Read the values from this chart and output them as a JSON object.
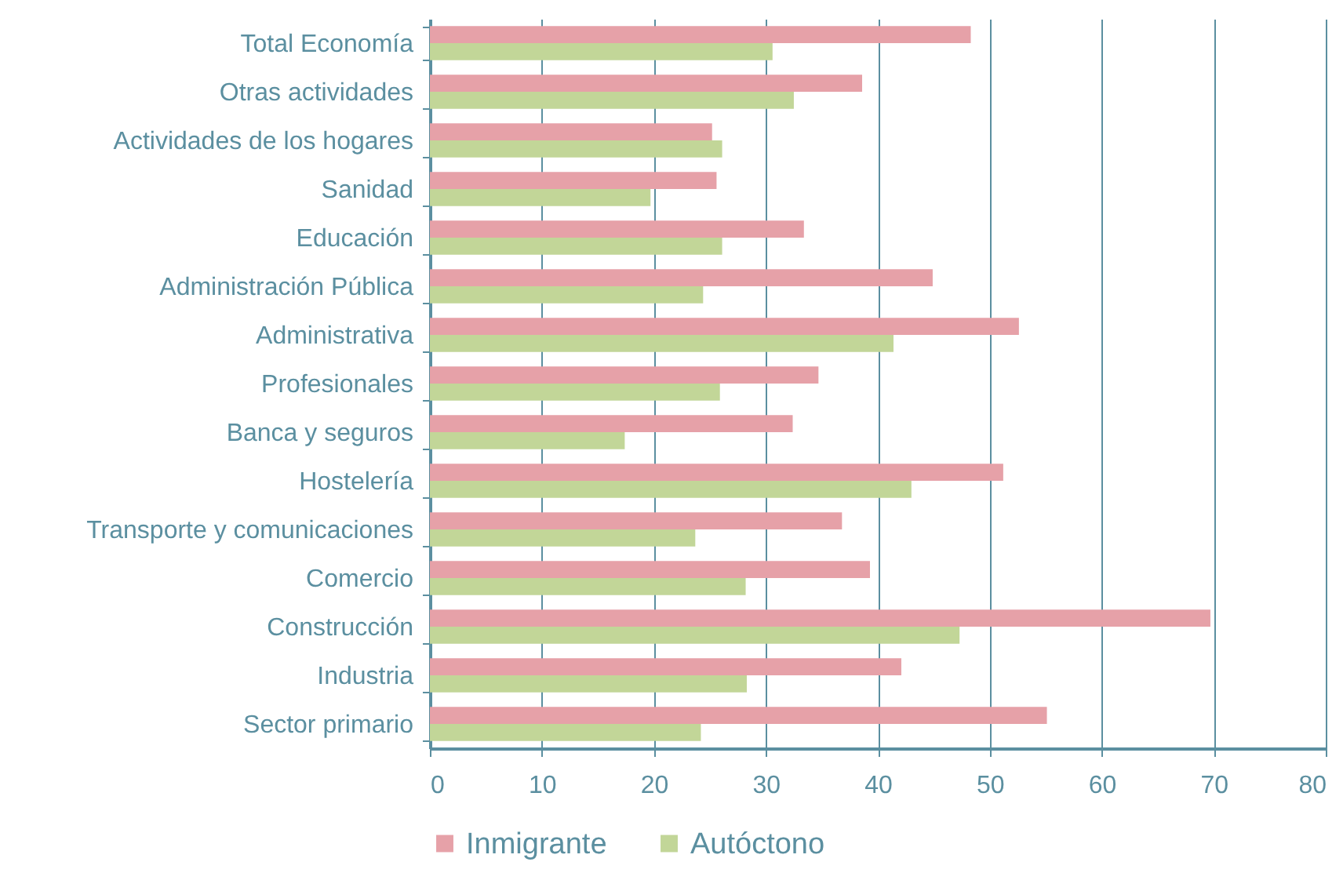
{
  "chart_data": {
    "type": "bar",
    "orientation": "horizontal",
    "categories": [
      "Total Economía",
      "Otras actividades",
      "Actividades de los hogares",
      "Sanidad",
      "Educación",
      "Administración Pública",
      "Administrativa",
      "Profesionales",
      "Banca y seguros",
      "Hostelería",
      "Transporte y comunicaciones",
      "Comercio",
      "Construcción",
      "Industria",
      "Sector primario"
    ],
    "series": [
      {
        "name": "Inmigrante",
        "color": "#e6a1a8",
        "values": [
          48.3,
          38.6,
          25.2,
          25.6,
          33.4,
          44.9,
          52.6,
          34.7,
          32.4,
          51.2,
          36.8,
          39.3,
          69.7,
          42.1,
          55.1
        ]
      },
      {
        "name": "Autóctono",
        "color": "#c2d698",
        "values": [
          30.6,
          32.5,
          26.1,
          19.7,
          26.1,
          24.4,
          41.4,
          25.9,
          17.4,
          43.0,
          23.7,
          28.2,
          47.3,
          28.3,
          24.2
        ]
      }
    ],
    "xlim": [
      0,
      80
    ],
    "xticks": [
      0,
      10,
      20,
      30,
      40,
      50,
      60,
      70,
      80
    ],
    "grid": "x",
    "legend": "bottom"
  }
}
